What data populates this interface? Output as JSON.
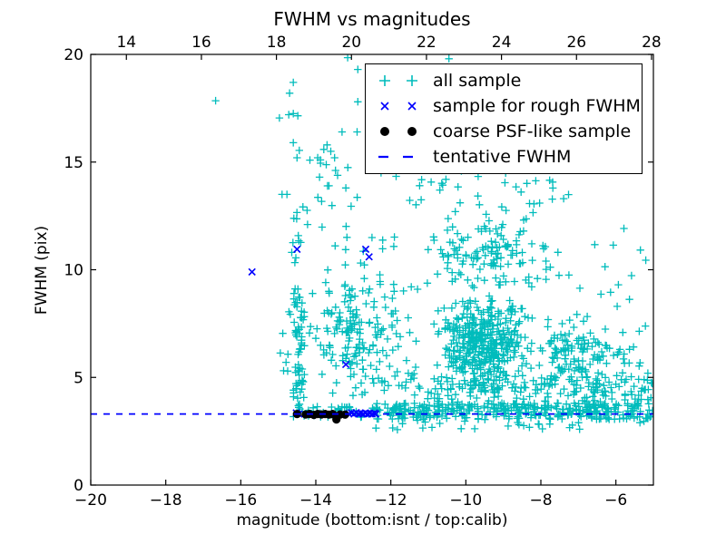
{
  "figure": {
    "title": "FWHM vs magnitudes",
    "xlabel": "magnitude (bottom:isnt / top:calib)",
    "ylabel": "FWHM (pix)"
  },
  "colors": {
    "all_sample": "#00bcbc",
    "rough_fwhm": "#0000ff",
    "psf_like": "#000000",
    "tentative_line": "#0000ff",
    "axis": "#000000",
    "background": "#ffffff"
  },
  "chart_data": {
    "type": "scatter",
    "title": "FWHM vs magnitudes",
    "xlabel": "magnitude (bottom:isnt / top:calib)",
    "ylabel": "FWHM (pix)",
    "xlim": [
      -20,
      -5
    ],
    "ylim": [
      0,
      20
    ],
    "grid": false,
    "x_tick_values_bottom": [
      -20,
      -18,
      -16,
      -14,
      -12,
      -10,
      -8,
      -6
    ],
    "x_tick_labels_bottom": [
      "−20",
      "−18",
      "−16",
      "−14",
      "−12",
      "−10",
      "−8",
      "−6"
    ],
    "x_tick_values_top_calib": [
      14,
      16,
      18,
      20,
      22,
      24,
      26,
      28
    ],
    "x_tick_labels_top": [
      "14",
      "16",
      "18",
      "20",
      "22",
      "24",
      "26",
      "28"
    ],
    "top_axis_offset_calib_minus_isnt": 33.05,
    "y_tick_values": [
      0,
      5,
      10,
      15,
      20
    ],
    "y_tick_labels": [
      "0",
      "5",
      "10",
      "15",
      "20"
    ],
    "tentative_fwhm": 3.3,
    "legend": {
      "position": "upper right"
    },
    "seed": 7,
    "series": [
      {
        "name": "all sample",
        "marker": "+",
        "color": "#00bcbc",
        "note": "dense overplotted cloud; reconstructed from cluster estimates plus distinguishable outlier points",
        "clusters": [
          {
            "x": [
              -14.62,
              -12.4
            ],
            "y": [
              3.15,
              3.65
            ],
            "n": 40,
            "dist": "uniform"
          },
          {
            "x": [
              -12.4,
              -5.02
            ],
            "y": [
              3.05,
              3.8
            ],
            "n": 340,
            "dist": "uniform"
          },
          {
            "x": [
              -11.6,
              -5.02
            ],
            "y": [
              3.8,
              5.0
            ],
            "n": 120,
            "dist": "uniform"
          },
          {
            "x": [
              -14.6,
              -14.3
            ],
            "y": [
              3.6,
              9.2
            ],
            "n": 65,
            "dist": "uniform"
          },
          {
            "x": [
              -14.65,
              -14.3
            ],
            "y": [
              9.2,
              13.2
            ],
            "n": 10,
            "dist": "uniform"
          },
          {
            "x": [
              -14.95,
              -14.62
            ],
            "y": [
              5.0,
              10.0
            ],
            "n": 8,
            "dist": "uniform"
          },
          {
            "x": [
              -14.35,
              -11.7
            ],
            "y": [
              3.9,
              10.8
            ],
            "n": 150,
            "dist": "gauss"
          },
          {
            "x": [
              -14.6,
              -11.8
            ],
            "y": [
              10.8,
              15.6
            ],
            "n": 30,
            "dist": "uniform"
          },
          {
            "x": [
              -12.3,
              -11.2
            ],
            "y": [
              3.9,
              9.5
            ],
            "n": 40,
            "dist": "uniform"
          },
          {
            "x": [
              -10.9,
              -8.1
            ],
            "y": [
              4.0,
              9.0
            ],
            "n": 430,
            "dist": "gauss"
          },
          {
            "x": [
              -11.3,
              -7.4
            ],
            "y": [
              9.0,
              12.6
            ],
            "n": 130,
            "dist": "gauss"
          },
          {
            "x": [
              -11.6,
              -6.9
            ],
            "y": [
              12.6,
              15.5
            ],
            "n": 50,
            "dist": "uniform"
          },
          {
            "x": [
              -8.1,
              -6.3
            ],
            "y": [
              4.0,
              8.2
            ],
            "n": 100,
            "dist": "gauss"
          },
          {
            "x": [
              -6.9,
              -5.05
            ],
            "y": [
              3.8,
              6.8
            ],
            "n": 55,
            "dist": "uniform"
          },
          {
            "x": [
              -7.6,
              -5.1
            ],
            "y": [
              6.8,
              12.5
            ],
            "n": 22,
            "dist": "uniform"
          },
          {
            "x": [
              -12.6,
              -5.05
            ],
            "y": [
              2.55,
              3.05
            ],
            "n": 28,
            "dist": "uniform"
          }
        ],
        "outlier_points": [
          [
            -16.67,
            17.85
          ],
          [
            -14.6,
            18.7
          ],
          [
            -14.7,
            18.2
          ],
          [
            -14.72,
            17.2
          ],
          [
            -14.6,
            17.25
          ],
          [
            -14.48,
            17.15
          ],
          [
            -14.97,
            17.05
          ],
          [
            -14.6,
            15.9
          ],
          [
            -13.15,
            19.85
          ],
          [
            -12.88,
            19.3
          ],
          [
            -10.45,
            19.8
          ],
          [
            -12.88,
            17.8
          ],
          [
            -12.9,
            16.4
          ],
          [
            -13.3,
            16.4
          ],
          [
            -14.5,
            15.2
          ],
          [
            -13.95,
            15.2
          ],
          [
            -13.88,
            15.1
          ],
          [
            -13.7,
            15.8
          ],
          [
            -13.6,
            15.5
          ],
          [
            -13.5,
            15.2
          ],
          [
            -14.9,
            13.5
          ],
          [
            -14.77,
            13.5
          ],
          [
            -13.9,
            14.3
          ],
          [
            -13.65,
            13.9
          ],
          [
            -13.2,
            13.8
          ]
        ]
      },
      {
        "name": "sample for rough FWHM",
        "marker": "x",
        "color": "#0000ff",
        "points": [
          [
            -15.7,
            9.9
          ],
          [
            -14.5,
            10.95
          ],
          [
            -12.67,
            10.95
          ],
          [
            -12.58,
            10.6
          ],
          [
            -13.2,
            5.6
          ],
          [
            -14.52,
            3.35
          ],
          [
            -14.45,
            3.3
          ],
          [
            -13.12,
            3.32
          ],
          [
            -13.05,
            3.35
          ],
          [
            -12.98,
            3.3
          ],
          [
            -12.92,
            3.36
          ],
          [
            -12.86,
            3.3
          ],
          [
            -12.8,
            3.34
          ],
          [
            -12.74,
            3.3
          ],
          [
            -12.68,
            3.35
          ],
          [
            -12.62,
            3.3
          ],
          [
            -12.56,
            3.33
          ],
          [
            -12.5,
            3.3
          ],
          [
            -12.44,
            3.34
          ],
          [
            -12.4,
            3.3
          ]
        ]
      },
      {
        "name": "coarse PSF-like sample",
        "marker": "o",
        "color": "#000000",
        "points": [
          [
            -14.5,
            3.3
          ],
          [
            -14.27,
            3.28
          ],
          [
            -14.17,
            3.3
          ],
          [
            -14.05,
            3.26
          ],
          [
            -13.95,
            3.3
          ],
          [
            -13.85,
            3.28
          ],
          [
            -13.75,
            3.3
          ],
          [
            -13.65,
            3.27
          ],
          [
            -13.55,
            3.3
          ],
          [
            -13.45,
            3.05
          ],
          [
            -13.35,
            3.28
          ],
          [
            -13.22,
            3.27
          ]
        ]
      },
      {
        "name": "tentative FWHM",
        "style": "dashed-hline",
        "color": "#0000ff",
        "y": 3.3,
        "x_span": [
          -20,
          -5
        ]
      }
    ]
  }
}
